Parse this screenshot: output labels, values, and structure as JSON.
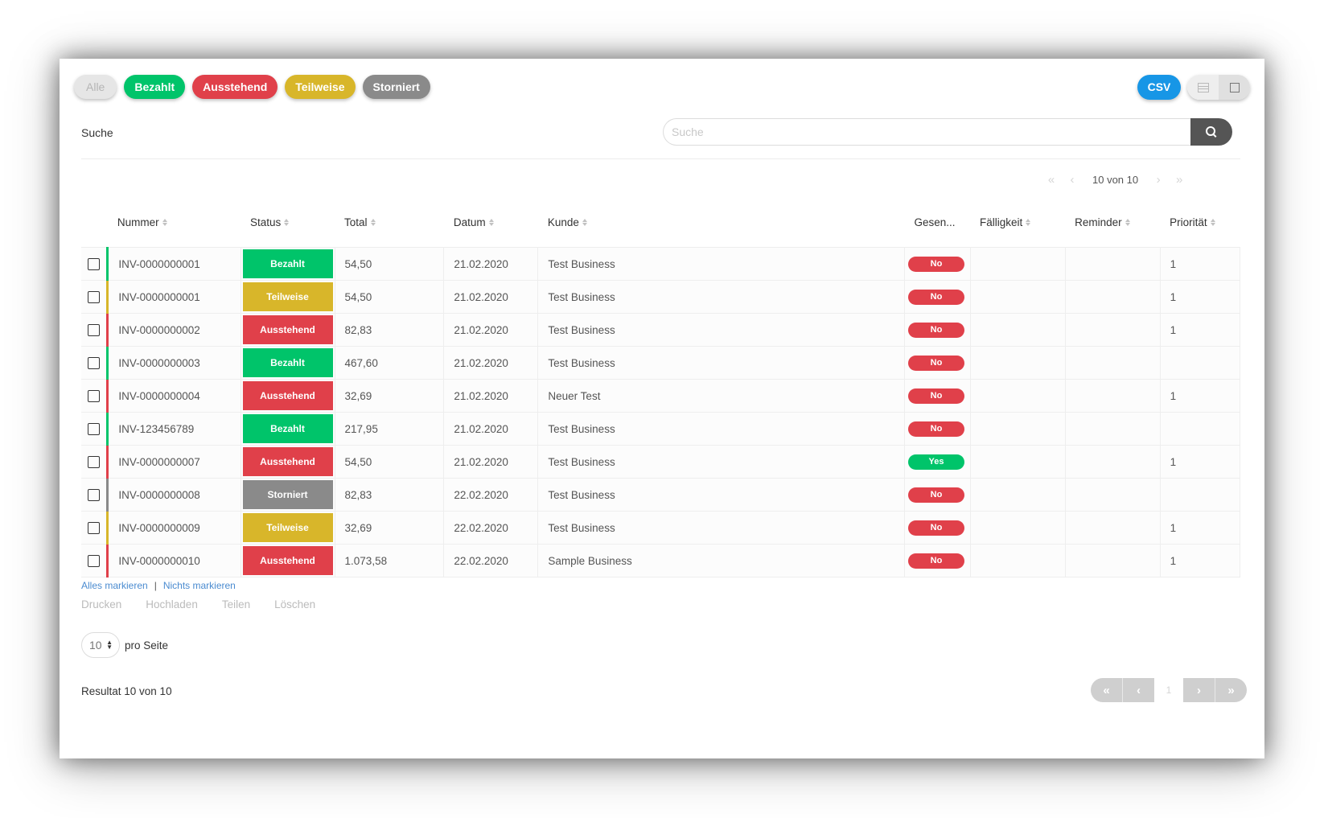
{
  "filters": {
    "all": "Alle",
    "paid": "Bezahlt",
    "pending": "Ausstehend",
    "partial": "Teilweise",
    "cancelled": "Storniert"
  },
  "toolbar": {
    "csv": "CSV",
    "view_list_icon": "list-icon",
    "view_grid_icon": "grid-icon"
  },
  "search": {
    "label": "Suche",
    "placeholder": "Suche",
    "button_icon": "search-icon"
  },
  "pager_top": {
    "count": "10 von 10",
    "first": "«",
    "prev": "‹",
    "next": "›",
    "last": "»"
  },
  "table": {
    "columns": {
      "nummer": "Nummer",
      "status": "Status",
      "total": "Total",
      "datum": "Datum",
      "kunde": "Kunde",
      "gesendet": "Gesen...",
      "faelligkeit": "Fälligkeit",
      "reminder": "Reminder",
      "prioritaet": "Priorität"
    },
    "rows": [
      {
        "nummer": "INV-0000000001",
        "status": "Bezahlt",
        "status_type": "bezahlt",
        "total": "54,50",
        "datum": "21.02.2020",
        "kunde": "Test Business",
        "gesendet": "No",
        "faelligkeit": "",
        "reminder": "",
        "prioritaet": "1"
      },
      {
        "nummer": "INV-0000000001",
        "status": "Teilweise",
        "status_type": "teilweise",
        "total": "54,50",
        "datum": "21.02.2020",
        "kunde": "Test Business",
        "gesendet": "No",
        "faelligkeit": "",
        "reminder": "",
        "prioritaet": "1"
      },
      {
        "nummer": "INV-0000000002",
        "status": "Ausstehend",
        "status_type": "ausstehend",
        "total": "82,83",
        "datum": "21.02.2020",
        "kunde": "Test Business",
        "gesendet": "No",
        "faelligkeit": "",
        "reminder": "",
        "prioritaet": "1"
      },
      {
        "nummer": "INV-0000000003",
        "status": "Bezahlt",
        "status_type": "bezahlt",
        "total": "467,60",
        "datum": "21.02.2020",
        "kunde": "Test Business",
        "gesendet": "No",
        "faelligkeit": "",
        "reminder": "",
        "prioritaet": ""
      },
      {
        "nummer": "INV-0000000004",
        "status": "Ausstehend",
        "status_type": "ausstehend",
        "total": "32,69",
        "datum": "21.02.2020",
        "kunde": "Neuer Test",
        "gesendet": "No",
        "faelligkeit": "",
        "reminder": "",
        "prioritaet": "1"
      },
      {
        "nummer": "INV-123456789",
        "status": "Bezahlt",
        "status_type": "bezahlt",
        "total": "217,95",
        "datum": "21.02.2020",
        "kunde": "Test Business",
        "gesendet": "No",
        "faelligkeit": "",
        "reminder": "",
        "prioritaet": ""
      },
      {
        "nummer": "INV-0000000007",
        "status": "Ausstehend",
        "status_type": "ausstehend",
        "total": "54,50",
        "datum": "21.02.2020",
        "kunde": "Test Business",
        "gesendet": "Yes",
        "faelligkeit": "",
        "reminder": "",
        "prioritaet": "1"
      },
      {
        "nummer": "INV-0000000008",
        "status": "Storniert",
        "status_type": "storniert",
        "total": "82,83",
        "datum": "22.02.2020",
        "kunde": "Test Business",
        "gesendet": "No",
        "faelligkeit": "",
        "reminder": "",
        "prioritaet": ""
      },
      {
        "nummer": "INV-0000000009",
        "status": "Teilweise",
        "status_type": "teilweise",
        "total": "32,69",
        "datum": "22.02.2020",
        "kunde": "Test Business",
        "gesendet": "No",
        "faelligkeit": "",
        "reminder": "",
        "prioritaet": "1"
      },
      {
        "nummer": "INV-0000000010",
        "status": "Ausstehend",
        "status_type": "ausstehend",
        "total": "1.073,58",
        "datum": "22.02.2020",
        "kunde": "Sample Business",
        "gesendet": "No",
        "faelligkeit": "",
        "reminder": "",
        "prioritaet": "1"
      }
    ]
  },
  "bulk": {
    "select_all": "Alles markieren",
    "separator": "|",
    "select_none": "Nichts markieren"
  },
  "actions": {
    "print": "Drucken",
    "upload": "Hochladen",
    "share": "Teilen",
    "delete": "Löschen"
  },
  "per_page": {
    "value": "10",
    "label": "pro Seite"
  },
  "result": "Resultat 10 von 10",
  "pager_bottom": {
    "first": "«",
    "prev": "‹",
    "page": "1",
    "next": "›",
    "last": "»"
  },
  "colors": {
    "bezahlt": "#00c46a",
    "ausstehend": "#e0404a",
    "teilweise": "#d8b62a",
    "storniert": "#8a8a8a",
    "csv": "#1796e6"
  }
}
